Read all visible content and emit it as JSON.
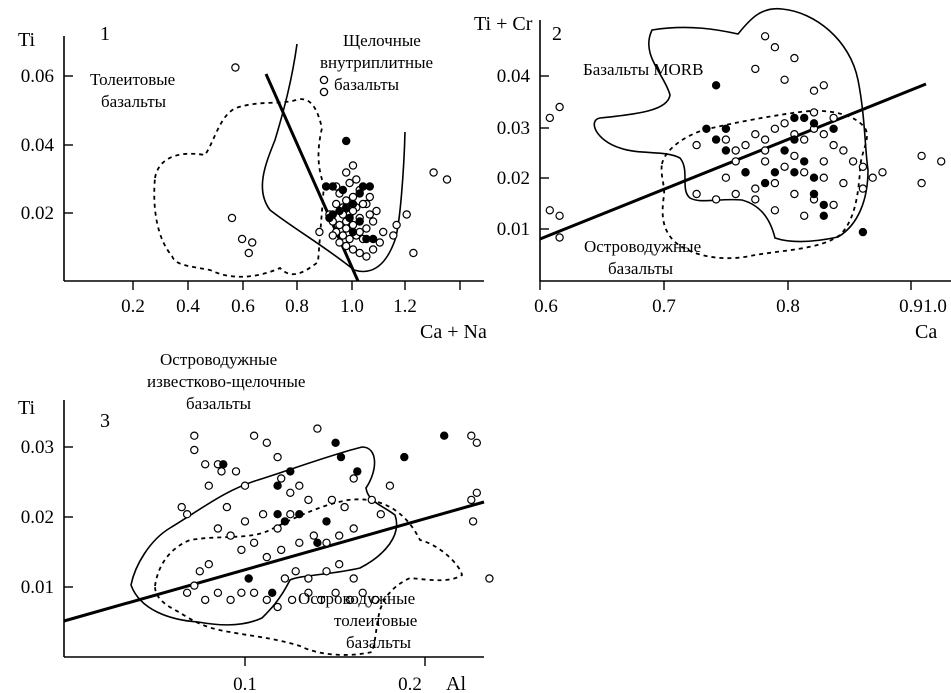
{
  "chart_data": [
    {
      "type": "scatter",
      "panel_number": "1",
      "xlabel": "Ca + Na",
      "ylabel": "Ti",
      "xlim": [
        0.0,
        1.25
      ],
      "ylim": [
        0.0,
        0.07
      ],
      "x_ticks": [
        "0.2",
        "0.4",
        "0.6",
        "0.8",
        "1.0",
        "1.2"
      ],
      "y_ticks": [
        "0.02",
        "0.04",
        "0.06"
      ],
      "annotations": [
        {
          "lines": [
            "Толеитовые",
            "базальты"
          ]
        },
        {
          "lines": [
            "Щелочные",
            "внутриплитные",
            "базальты"
          ]
        }
      ],
      "legend_symbols": [
        "open-circle",
        "open-circle"
      ],
      "series": [
        {
          "marker": "open",
          "points": [
            [
              0.51,
              0.061
            ],
            [
              0.5,
              0.018
            ],
            [
              0.53,
              0.012
            ],
            [
              0.56,
              0.011
            ],
            [
              0.55,
              0.008
            ],
            [
              0.76,
              0.014
            ],
            [
              1.1,
              0.031
            ],
            [
              1.14,
              0.029
            ],
            [
              0.99,
              0.016
            ],
            [
              1.02,
              0.019
            ],
            [
              1.04,
              0.008
            ],
            [
              0.98,
              0.013
            ],
            [
              0.84,
              0.031
            ],
            [
              0.86,
              0.033
            ],
            [
              0.81,
              0.027
            ],
            [
              0.82,
              0.025
            ],
            [
              0.84,
              0.023
            ],
            [
              0.86,
              0.024
            ],
            [
              0.88,
              0.026
            ],
            [
              0.9,
              0.022
            ],
            [
              0.87,
              0.021
            ],
            [
              0.85,
              0.019
            ],
            [
              0.83,
              0.021
            ],
            [
              0.81,
              0.022
            ],
            [
              0.79,
              0.019
            ],
            [
              0.8,
              0.017
            ],
            [
              0.82,
              0.016
            ],
            [
              0.84,
              0.017
            ],
            [
              0.86,
              0.016
            ],
            [
              0.88,
              0.018
            ],
            [
              0.9,
              0.015
            ],
            [
              0.92,
              0.017
            ],
            [
              0.89,
              0.012
            ],
            [
              0.87,
              0.013
            ],
            [
              0.85,
              0.012
            ],
            [
              0.83,
              0.013
            ],
            [
              0.81,
              0.014
            ],
            [
              0.84,
              0.01
            ],
            [
              0.86,
              0.009
            ],
            [
              0.88,
              0.008
            ],
            [
              0.9,
              0.007
            ],
            [
              0.92,
              0.009
            ],
            [
              0.94,
              0.011
            ],
            [
              0.95,
              0.014
            ],
            [
              0.93,
              0.02
            ],
            [
              0.91,
              0.024
            ],
            [
              0.87,
              0.029
            ],
            [
              0.85,
              0.028
            ],
            [
              0.83,
              0.019
            ],
            [
              0.88,
              0.014
            ],
            [
              0.82,
              0.011
            ],
            [
              0.8,
              0.013
            ],
            [
              0.89,
              0.022
            ],
            [
              0.91,
              0.019
            ],
            [
              0.86,
              0.02
            ],
            [
              0.84,
              0.015
            ]
          ]
        },
        {
          "marker": "filled",
          "points": [
            [
              0.84,
              0.04
            ],
            [
              0.78,
              0.027
            ],
            [
              0.8,
              0.027
            ],
            [
              0.83,
              0.026
            ],
            [
              0.89,
              0.027
            ],
            [
              0.91,
              0.027
            ],
            [
              0.88,
              0.025
            ],
            [
              0.86,
              0.022
            ],
            [
              0.84,
              0.021
            ],
            [
              0.82,
              0.02
            ],
            [
              0.8,
              0.019
            ],
            [
              0.79,
              0.018
            ],
            [
              0.88,
              0.017
            ],
            [
              0.86,
              0.014
            ],
            [
              0.92,
              0.012
            ],
            [
              0.9,
              0.012
            ],
            [
              0.85,
              0.018
            ]
          ]
        }
      ]
    },
    {
      "type": "scatter",
      "panel_number": "2",
      "xlabel": "Ca",
      "ylabel": "Ti + Cr",
      "xlim": [
        0.6,
        1.02
      ],
      "ylim": [
        0.0,
        0.048
      ],
      "x_ticks": [
        "0.6",
        "0.7",
        "0.8",
        "0.9",
        "1.0"
      ],
      "y_ticks": [
        "0.01",
        "0.02",
        "0.03",
        "0.04"
      ],
      "annotations": [
        {
          "lines": [
            "Базальты MORB"
          ]
        },
        {
          "lines": [
            "Островодужные",
            "базальты"
          ]
        }
      ],
      "series": [
        {
          "marker": "open",
          "points": [
            [
              0.61,
              0.03
            ],
            [
              0.62,
              0.032
            ],
            [
              0.61,
              0.013
            ],
            [
              0.62,
              0.012
            ],
            [
              0.62,
              0.008
            ],
            [
              0.83,
              0.045
            ],
            [
              0.84,
              0.043
            ],
            [
              0.86,
              0.041
            ],
            [
              0.82,
              0.039
            ],
            [
              0.85,
              0.037
            ],
            [
              0.88,
              0.035
            ],
            [
              0.89,
              0.036
            ],
            [
              0.76,
              0.025
            ],
            [
              0.79,
              0.026
            ],
            [
              0.8,
              0.024
            ],
            [
              0.81,
              0.025
            ],
            [
              0.82,
              0.027
            ],
            [
              0.83,
              0.026
            ],
            [
              0.84,
              0.028
            ],
            [
              0.85,
              0.029
            ],
            [
              0.86,
              0.027
            ],
            [
              0.87,
              0.026
            ],
            [
              0.88,
              0.028
            ],
            [
              0.89,
              0.027
            ],
            [
              0.9,
              0.025
            ],
            [
              0.91,
              0.024
            ],
            [
              0.92,
              0.022
            ],
            [
              0.93,
              0.021
            ],
            [
              0.94,
              0.019
            ],
            [
              0.95,
              0.02
            ],
            [
              0.93,
              0.017
            ],
            [
              0.91,
              0.018
            ],
            [
              0.89,
              0.019
            ],
            [
              0.87,
              0.02
            ],
            [
              0.85,
              0.021
            ],
            [
              0.83,
              0.022
            ],
            [
              0.81,
              0.02
            ],
            [
              0.79,
              0.019
            ],
            [
              0.8,
              0.016
            ],
            [
              0.82,
              0.017
            ],
            [
              0.84,
              0.018
            ],
            [
              0.86,
              0.016
            ],
            [
              0.88,
              0.015
            ],
            [
              0.9,
              0.014
            ],
            [
              0.87,
              0.012
            ],
            [
              0.84,
              0.013
            ],
            [
              0.82,
              0.015
            ],
            [
              0.78,
              0.015
            ],
            [
              0.76,
              0.016
            ],
            [
              0.8,
              0.022
            ],
            [
              0.83,
              0.024
            ],
            [
              0.86,
              0.023
            ],
            [
              0.89,
              0.022
            ],
            [
              0.99,
              0.023
            ],
            [
              1.01,
              0.022
            ],
            [
              0.99,
              0.018
            ],
            [
              0.9,
              0.03
            ],
            [
              0.88,
              0.031
            ]
          ]
        },
        {
          "marker": "filled",
          "points": [
            [
              0.78,
              0.036
            ],
            [
              0.77,
              0.028
            ],
            [
              0.79,
              0.028
            ],
            [
              0.78,
              0.026
            ],
            [
              0.79,
              0.024
            ],
            [
              0.86,
              0.03
            ],
            [
              0.87,
              0.03
            ],
            [
              0.88,
              0.029
            ],
            [
              0.9,
              0.028
            ],
            [
              0.86,
              0.026
            ],
            [
              0.85,
              0.024
            ],
            [
              0.87,
              0.022
            ],
            [
              0.86,
              0.02
            ],
            [
              0.88,
              0.019
            ],
            [
              0.84,
              0.02
            ],
            [
              0.83,
              0.018
            ],
            [
              0.88,
              0.016
            ],
            [
              0.89,
              0.014
            ],
            [
              0.89,
              0.012
            ],
            [
              0.93,
              0.009
            ],
            [
              0.81,
              0.02
            ]
          ]
        }
      ],
      "trend_line": {
        "points": [
          [
            0.6,
            0.0087
          ],
          [
            0.98,
            0.0385
          ]
        ]
      }
    },
    {
      "type": "scatter",
      "panel_number": "3",
      "xlabel": "Al",
      "ylabel": "Ti",
      "xlim": [
        0.0,
        0.232
      ],
      "ylim": [
        0.0,
        0.036
      ],
      "x_ticks": [
        "0.1",
        "0.2"
      ],
      "y_ticks": [
        "0.01",
        "0.02",
        "0.03"
      ],
      "annotations": [
        {
          "lines": [
            "Островодужные",
            "известково-щелочные",
            "базальты"
          ]
        },
        {
          "lines": [
            "Островодужные",
            "толеитовые",
            "базальты"
          ]
        }
      ],
      "series": [
        {
          "marker": "open",
          "points": [
            [
              0.065,
              0.021
            ],
            [
              0.068,
              0.02
            ],
            [
              0.072,
              0.031
            ],
            [
              0.072,
              0.029
            ],
            [
              0.078,
              0.027
            ],
            [
              0.085,
              0.027
            ],
            [
              0.087,
              0.026
            ],
            [
              0.08,
              0.024
            ],
            [
              0.095,
              0.026
            ],
            [
              0.1,
              0.024
            ],
            [
              0.105,
              0.031
            ],
            [
              0.112,
              0.03
            ],
            [
              0.118,
              0.028
            ],
            [
              0.12,
              0.025
            ],
            [
              0.125,
              0.023
            ],
            [
              0.14,
              0.032
            ],
            [
              0.13,
              0.024
            ],
            [
              0.135,
              0.022
            ],
            [
              0.148,
              0.022
            ],
            [
              0.155,
              0.021
            ],
            [
              0.16,
              0.025
            ],
            [
              0.17,
              0.022
            ],
            [
              0.175,
              0.02
            ],
            [
              0.18,
              0.024
            ],
            [
              0.225,
              0.031
            ],
            [
              0.228,
              0.03
            ],
            [
              0.225,
              0.022
            ],
            [
              0.228,
              0.023
            ],
            [
              0.226,
              0.019
            ],
            [
              0.09,
              0.021
            ],
            [
              0.1,
              0.019
            ],
            [
              0.11,
              0.02
            ],
            [
              0.118,
              0.018
            ],
            [
              0.125,
              0.02
            ],
            [
              0.13,
              0.016
            ],
            [
              0.138,
              0.017
            ],
            [
              0.145,
              0.016
            ],
            [
              0.152,
              0.017
            ],
            [
              0.16,
              0.018
            ],
            [
              0.085,
              0.018
            ],
            [
              0.092,
              0.017
            ],
            [
              0.098,
              0.015
            ],
            [
              0.105,
              0.016
            ],
            [
              0.112,
              0.014
            ],
            [
              0.12,
              0.015
            ],
            [
              0.128,
              0.012
            ],
            [
              0.135,
              0.011
            ],
            [
              0.145,
              0.012
            ],
            [
              0.152,
              0.013
            ],
            [
              0.16,
              0.011
            ],
            [
              0.08,
              0.013
            ],
            [
              0.075,
              0.012
            ],
            [
              0.072,
              0.01
            ],
            [
              0.068,
              0.009
            ],
            [
              0.078,
              0.008
            ],
            [
              0.085,
              0.009
            ],
            [
              0.092,
              0.008
            ],
            [
              0.098,
              0.009
            ],
            [
              0.105,
              0.009
            ],
            [
              0.112,
              0.008
            ],
            [
              0.118,
              0.007
            ],
            [
              0.126,
              0.008
            ],
            [
              0.135,
              0.009
            ],
            [
              0.142,
              0.008
            ],
            [
              0.15,
              0.009
            ],
            [
              0.158,
              0.008
            ],
            [
              0.165,
              0.009
            ],
            [
              0.172,
              0.008
            ],
            [
              0.235,
              0.011
            ],
            [
              0.122,
              0.011
            ]
          ]
        },
        {
          "marker": "filled",
          "points": [
            [
              0.088,
              0.027
            ],
            [
              0.118,
              0.024
            ],
            [
              0.125,
              0.026
            ],
            [
              0.15,
              0.03
            ],
            [
              0.153,
              0.028
            ],
            [
              0.162,
              0.026
            ],
            [
              0.188,
              0.028
            ],
            [
              0.21,
              0.031
            ],
            [
              0.118,
              0.02
            ],
            [
              0.122,
              0.019
            ],
            [
              0.13,
              0.02
            ],
            [
              0.145,
              0.019
            ],
            [
              0.14,
              0.016
            ],
            [
              0.102,
              0.011
            ],
            [
              0.115,
              0.009
            ]
          ]
        }
      ],
      "trend_line": {
        "points": [
          [
            0.0,
            0.0047
          ],
          [
            0.24,
            0.0217
          ]
        ]
      }
    }
  ]
}
